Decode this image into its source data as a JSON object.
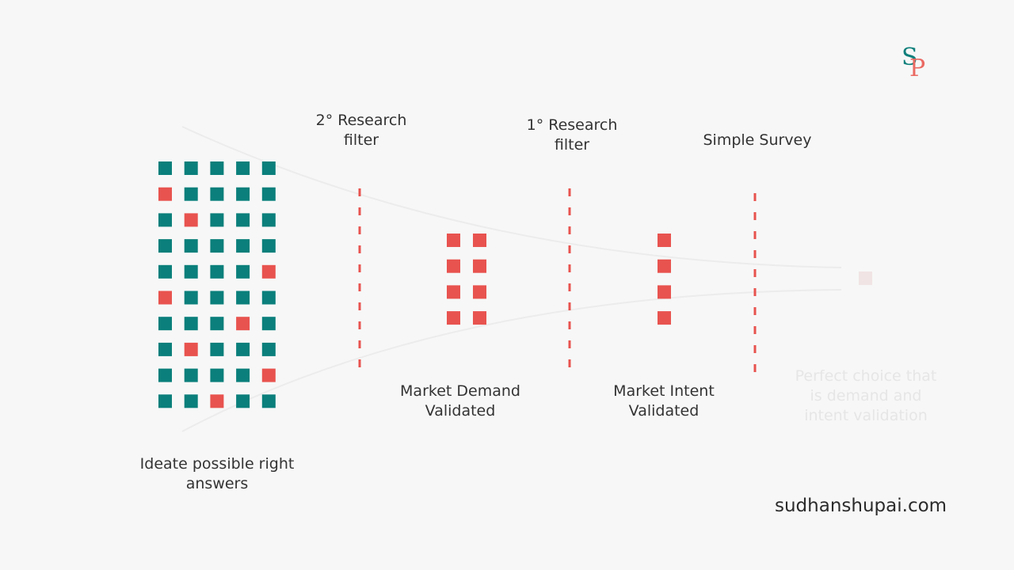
{
  "colors": {
    "teal": "#0a7f7b",
    "red": "#e8534f",
    "faint": "#ededed",
    "text": "#333333"
  },
  "logo": {
    "s": "S",
    "p": "P"
  },
  "labels": {
    "secondary_filter": [
      "2° Research",
      "filter"
    ],
    "primary_filter": [
      "1° Research",
      "filter"
    ],
    "survey": "Simple Survey",
    "market_demand": [
      "Market Demand",
      "Validated"
    ],
    "market_intent": [
      "Market Intent",
      "Validated"
    ],
    "perfect_choice": [
      "Perfect choice that",
      "is demand and",
      "intent validation"
    ],
    "ideate": [
      "Ideate possible right",
      "answers"
    ]
  },
  "website": "sudhanshupai.com",
  "idea_grid": {
    "rows": 10,
    "cols": 5,
    "cells": [
      [
        "teal",
        "teal",
        "teal",
        "teal",
        "teal"
      ],
      [
        "red",
        "teal",
        "teal",
        "teal",
        "teal"
      ],
      [
        "teal",
        "red",
        "teal",
        "teal",
        "teal"
      ],
      [
        "teal",
        "teal",
        "teal",
        "teal",
        "teal"
      ],
      [
        "teal",
        "teal",
        "teal",
        "teal",
        "red"
      ],
      [
        "red",
        "teal",
        "teal",
        "teal",
        "teal"
      ],
      [
        "teal",
        "teal",
        "teal",
        "red",
        "teal"
      ],
      [
        "teal",
        "red",
        "teal",
        "teal",
        "teal"
      ],
      [
        "teal",
        "teal",
        "teal",
        "teal",
        "red"
      ],
      [
        "teal",
        "teal",
        "red",
        "teal",
        "teal"
      ]
    ]
  },
  "demand_grid": {
    "rows": 4,
    "cols": 2,
    "color": "red"
  },
  "intent_column": {
    "rows": 4,
    "cols": 1,
    "color": "red"
  },
  "final_choice": {
    "count": 1,
    "color": "faint"
  }
}
